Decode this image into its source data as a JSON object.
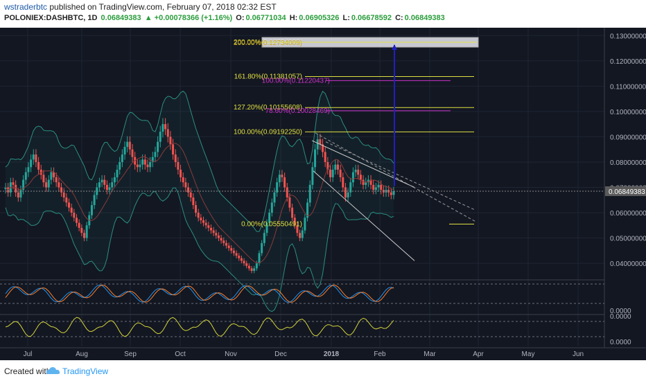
{
  "header": {
    "author": "wstraderbtc",
    "published_text": "published on TradingView.com, February 07, 2018 02:32 EST",
    "symbol": "POLONIEX:DASHBTC, 1D",
    "last": "0.06849383",
    "change": "▲ +0.00078366 (+1.16%)",
    "open_label": "O:",
    "open": "0.06771034",
    "high_label": "H:",
    "high": "0.06905326",
    "low_label": "L:",
    "low": "0.06678592",
    "close_label": "C:",
    "close": "0.06849383"
  },
  "footer": {
    "created_with": "Created with",
    "brand": "TradingView"
  },
  "colors": {
    "background": "#131722",
    "up": "#26a69a",
    "down": "#ef5350",
    "fib": "#e0e040",
    "fib_ext": "#cc33cc",
    "arrow": "#2020c0",
    "bollinger": "#2a8f82",
    "stoch_k": "#2196f3",
    "stoch_d": "#ff7f2a",
    "osc2": "#d4d43a",
    "channel": "#d0d0d0"
  },
  "chart_data": {
    "type": "candlestick",
    "y_axis": {
      "ylim": [
        0.034,
        0.132
      ],
      "ticks": [
        "0.13000000",
        "0.12000000",
        "0.11000000",
        "0.10000000",
        "0.09000000",
        "0.08000000",
        "0.07000000",
        "0.06000000",
        "0.05000000",
        "0.04000000"
      ],
      "last_price_label": "0.06849383"
    },
    "x_axis": {
      "labels": [
        "Jul",
        "Aug",
        "Sep",
        "Oct",
        "Nov",
        "Dec",
        "2018",
        "Feb",
        "Mar",
        "Apr",
        "May",
        "Jun"
      ]
    },
    "closes": [
      0.07,
      0.068,
      0.072,
      0.071,
      0.068,
      0.066,
      0.069,
      0.073,
      0.076,
      0.078,
      0.081,
      0.083,
      0.08,
      0.077,
      0.075,
      0.072,
      0.07,
      0.073,
      0.076,
      0.074,
      0.072,
      0.07,
      0.068,
      0.066,
      0.064,
      0.062,
      0.06,
      0.058,
      0.056,
      0.054,
      0.052,
      0.05,
      0.055,
      0.059,
      0.063,
      0.067,
      0.07,
      0.072,
      0.073,
      0.071,
      0.069,
      0.07,
      0.072,
      0.074,
      0.077,
      0.08,
      0.083,
      0.086,
      0.088,
      0.085,
      0.082,
      0.079,
      0.078,
      0.079,
      0.081,
      0.079,
      0.078,
      0.08,
      0.082,
      0.084,
      0.088,
      0.092,
      0.095,
      0.093,
      0.09,
      0.087,
      0.083,
      0.08,
      0.077,
      0.074,
      0.072,
      0.07,
      0.068,
      0.066,
      0.063,
      0.06,
      0.058,
      0.057,
      0.056,
      0.055,
      0.054,
      0.053,
      0.052,
      0.051,
      0.05,
      0.049,
      0.048,
      0.047,
      0.046,
      0.045,
      0.044,
      0.043,
      0.042,
      0.041,
      0.04,
      0.039,
      0.038,
      0.037,
      0.038,
      0.04,
      0.044,
      0.048,
      0.052,
      0.056,
      0.06,
      0.064,
      0.068,
      0.072,
      0.075,
      0.074,
      0.07,
      0.066,
      0.062,
      0.058,
      0.055,
      0.052,
      0.05,
      0.053,
      0.058,
      0.064,
      0.071,
      0.078,
      0.085,
      0.089,
      0.087,
      0.084,
      0.08,
      0.077,
      0.074,
      0.077,
      0.079,
      0.077,
      0.074,
      0.07,
      0.066,
      0.068,
      0.072,
      0.076,
      0.077,
      0.075,
      0.073,
      0.071,
      0.072,
      0.073,
      0.071,
      0.069,
      0.07,
      0.071,
      0.069,
      0.068,
      0.069,
      0.068,
      0.067,
      0.0685
    ],
    "fibonacci_retracement": [
      {
        "label": "200.00%(0.12734009)",
        "value": 0.12734009
      },
      {
        "label": "161.80%(0.11381057)",
        "value": 0.11381057
      },
      {
        "label": "127.20%(0.10155608)",
        "value": 0.10155608
      },
      {
        "label": "100.00%(0.09192250)",
        "value": 0.0919225
      },
      {
        "label": "0.00%(0.05550491)",
        "value": 0.05550491
      }
    ],
    "fibonacci_extension": [
      {
        "label": "100.00%(0.11220437)",
        "value": 0.11220437
      },
      {
        "label": "78.60%(0.10028469)",
        "value": 0.10028469
      }
    ],
    "target_arrow": {
      "from": 0.0705,
      "to": 0.12734009
    },
    "oscillator_1": {
      "type": "stochastic_rsi",
      "zero_label": "0.0000"
    },
    "oscillator_2": {
      "type": "oscillator",
      "top_label": "0.0000",
      "bottom_label": "0.0000"
    }
  }
}
